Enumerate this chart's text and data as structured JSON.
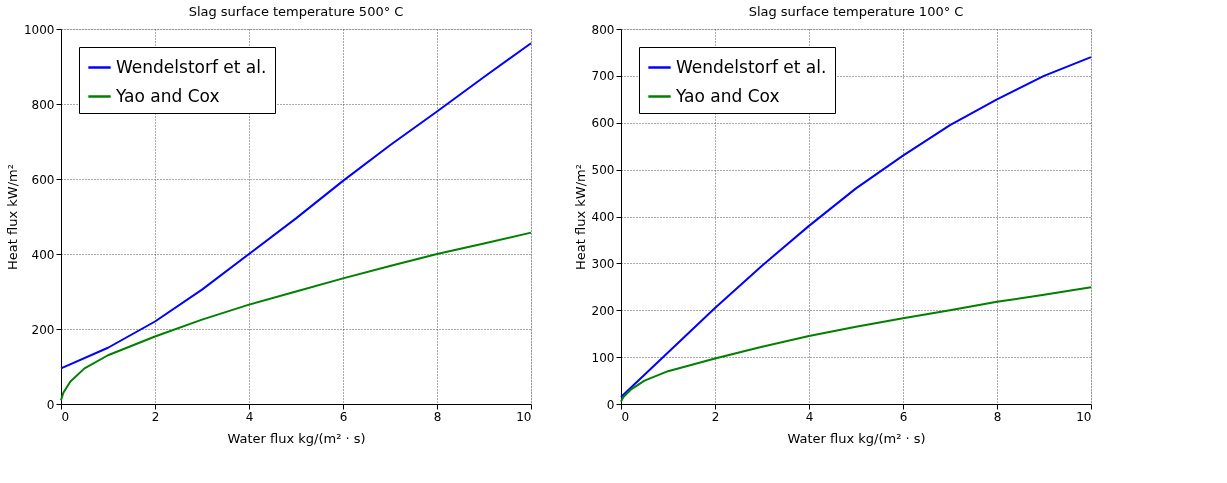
{
  "chart_data": [
    {
      "type": "line",
      "title": "Slag surface temperature 500° C",
      "xlabel": "Water flux kg/(m² · s)",
      "ylabel": "Heat flux kW/m²",
      "xlim": [
        0,
        10
      ],
      "xticks": [
        0,
        2,
        4,
        6,
        8,
        10
      ],
      "ylim": [
        0,
        1000
      ],
      "yticks": [
        0,
        200,
        400,
        600,
        800,
        1000
      ],
      "grid": true,
      "legend": "top left",
      "line_style": "solid",
      "marker": "none",
      "series": [
        {
          "name": "Wendelstorf et al.",
          "color": "#0000ff",
          "x": [
            0,
            1,
            2,
            3,
            4,
            5,
            6,
            7,
            8,
            9,
            10
          ],
          "values": [
            95,
            150,
            220,
            305,
            400,
            495,
            595,
            690,
            780,
            872,
            962
          ]
        },
        {
          "name": "Yao and Cox",
          "color": "#008000",
          "x": [
            0,
            0.05,
            0.2,
            0.5,
            1,
            2,
            3,
            4,
            5,
            6,
            7,
            8,
            9,
            10
          ],
          "values": [
            10,
            30,
            60,
            95,
            130,
            180,
            225,
            265,
            300,
            335,
            368,
            400,
            428,
            457
          ]
        }
      ]
    },
    {
      "type": "line",
      "title": "Slag surface temperature 100° C",
      "xlabel": "Water flux kg/(m² · s)",
      "ylabel": "Heat flux kW/m²",
      "xlim": [
        0,
        10
      ],
      "xticks": [
        0,
        2,
        4,
        6,
        8,
        10
      ],
      "ylim": [
        0,
        800
      ],
      "yticks": [
        0,
        100,
        200,
        300,
        400,
        500,
        600,
        700,
        800
      ],
      "grid": true,
      "legend": "top left",
      "line_style": "solid",
      "marker": "none",
      "series": [
        {
          "name": "Wendelstorf et al.",
          "color": "#0000ff",
          "x": [
            0,
            1,
            2,
            3,
            4,
            5,
            6,
            7,
            8,
            9,
            10
          ],
          "values": [
            15,
            110,
            205,
            295,
            380,
            460,
            530,
            595,
            650,
            700,
            740
          ]
        },
        {
          "name": "Yao and Cox",
          "color": "#008000",
          "x": [
            0,
            0.05,
            0.2,
            0.5,
            1,
            2,
            3,
            4,
            5,
            6,
            7,
            8,
            9,
            10
          ],
          "values": [
            5,
            15,
            30,
            50,
            70,
            97,
            122,
            145,
            165,
            183,
            200,
            218,
            233,
            249
          ]
        }
      ]
    }
  ]
}
